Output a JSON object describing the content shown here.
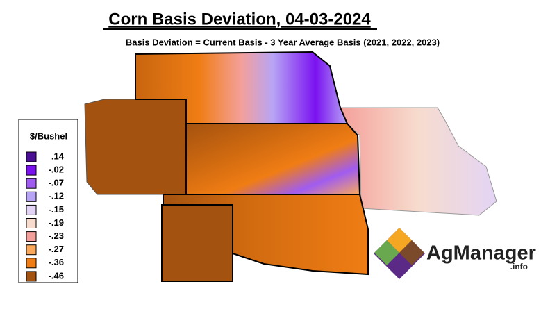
{
  "header": {
    "title": "Corn Basis Deviation, 04-03-2024",
    "subtitle": "Basis Deviation = Current Basis - 3 Year Average Basis (2021, 2022, 2023)"
  },
  "legend": {
    "title": "$/Bushel",
    "items": [
      {
        "label": ".14",
        "color": "#4b0f96"
      },
      {
        "label": "-.02",
        "color": "#7a12f0"
      },
      {
        "label": "-.07",
        "color": "#a05cf0"
      },
      {
        "label": "-.12",
        "color": "#b7a4f5"
      },
      {
        "label": "-.15",
        "color": "#e3d4f5"
      },
      {
        "label": "-.19",
        "color": "#f7dcce"
      },
      {
        "label": "-.23",
        "color": "#f4a09a"
      },
      {
        "label": "-.27",
        "color": "#f9a95c"
      },
      {
        "label": "-.36",
        "color": "#f07d14"
      },
      {
        "label": "-.46",
        "color": "#a4520f"
      }
    ]
  },
  "logo": {
    "name": "AgManager",
    "suffix": ".info"
  }
}
